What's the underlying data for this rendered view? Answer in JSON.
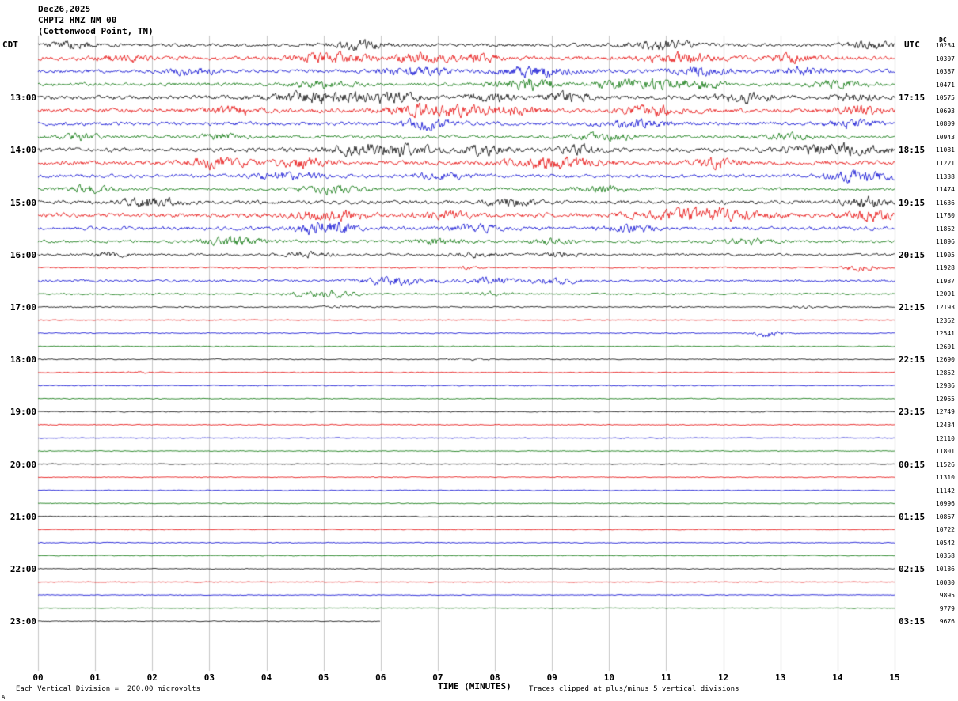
{
  "header": {
    "date": "Dec26,2025",
    "station": "CHPT2 HNZ NM 00",
    "location": "(Cottonwood Point, TN)",
    "left_tz": "CDT",
    "right_tz": "UTC",
    "right_col_label": "DC"
  },
  "footer": {
    "xlabel": "TIME (MINUTES)",
    "scale_note": "Each Vertical Division =  200.00 microvolts",
    "clip_note": "Traces clipped at plus/minus 5 vertical divisions",
    "corner_mark": "A"
  },
  "chart_data": {
    "type": "line",
    "title": "CHPT2 HNZ NM 00 (Cottonwood Point, TN) helicorder Dec26,2025",
    "xlabel": "TIME (MINUTES)",
    "x_range_minutes": [
      0,
      15
    ],
    "x_ticks": [
      "00",
      "01",
      "02",
      "03",
      "04",
      "05",
      "06",
      "07",
      "08",
      "09",
      "10",
      "11",
      "12",
      "13",
      "14",
      "15"
    ],
    "minutes_per_row": 15,
    "rows_per_hour": 4,
    "colors": {
      "black": "#000000",
      "red": "#e60000",
      "blue": "#0000d0",
      "green": "#007000",
      "grid": "#c6c6c6",
      "text": "#000000"
    },
    "rows": [
      {
        "color": "black",
        "dc": "10234",
        "amp": 1.6,
        "bursts": [
          [
            0.04,
            0.02,
            3
          ],
          [
            0.38,
            0.025,
            3.5
          ],
          [
            0.73,
            0.03,
            4
          ],
          [
            0.97,
            0.02,
            3
          ]
        ]
      },
      {
        "color": "red",
        "dc": "10307",
        "amp": 1.8,
        "bursts": [
          [
            0.1,
            0.02,
            3
          ],
          [
            0.34,
            0.03,
            4.5
          ],
          [
            0.44,
            0.02,
            4
          ],
          [
            0.51,
            0.02,
            3.5
          ],
          [
            0.75,
            0.03,
            4
          ],
          [
            0.88,
            0.02,
            3
          ]
        ]
      },
      {
        "color": "blue",
        "dc": "10387",
        "amp": 1.7,
        "bursts": [
          [
            0.18,
            0.02,
            3
          ],
          [
            0.44,
            0.025,
            4
          ],
          [
            0.58,
            0.03,
            4.5
          ],
          [
            0.77,
            0.025,
            4
          ],
          [
            0.89,
            0.02,
            3.5
          ]
        ]
      },
      {
        "color": "green",
        "dc": "10471",
        "amp": 1.7,
        "bursts": [
          [
            0.33,
            0.02,
            3
          ],
          [
            0.575,
            0.025,
            5
          ],
          [
            0.7,
            0.03,
            5
          ],
          [
            0.77,
            0.02,
            4
          ],
          [
            0.935,
            0.02,
            4
          ]
        ]
      },
      {
        "color": "black",
        "dc": "10575",
        "left": "13:00",
        "utc": "17:15",
        "amp": 2.0,
        "bursts": [
          [
            0.33,
            0.04,
            5
          ],
          [
            0.42,
            0.025,
            4
          ],
          [
            0.53,
            0.02,
            3.5
          ],
          [
            0.62,
            0.02,
            3.5
          ],
          [
            0.82,
            0.025,
            3.5
          ],
          [
            0.95,
            0.02,
            3
          ]
        ]
      },
      {
        "color": "red",
        "dc": "10693",
        "amp": 2.0,
        "bursts": [
          [
            0.23,
            0.02,
            3.5
          ],
          [
            0.47,
            0.04,
            5.5
          ],
          [
            0.56,
            0.02,
            4
          ],
          [
            0.72,
            0.025,
            4
          ],
          [
            0.96,
            0.02,
            3.5
          ]
        ]
      },
      {
        "color": "blue",
        "dc": "10809",
        "amp": 1.8,
        "bursts": [
          [
            0.455,
            0.02,
            4.5
          ],
          [
            0.7,
            0.025,
            3.5
          ],
          [
            0.95,
            0.02,
            3.5
          ]
        ]
      },
      {
        "color": "green",
        "dc": "10943",
        "amp": 1.5,
        "bursts": [
          [
            0.05,
            0.015,
            2.5
          ],
          [
            0.21,
            0.02,
            2.5
          ],
          [
            0.66,
            0.025,
            3
          ],
          [
            0.87,
            0.02,
            2.5
          ]
        ]
      },
      {
        "color": "black",
        "dc": "11081",
        "left": "14:00",
        "utc": "18:15",
        "amp": 1.9,
        "bursts": [
          [
            0.4,
            0.04,
            5.5
          ],
          [
            0.52,
            0.02,
            4
          ],
          [
            0.63,
            0.02,
            3.5
          ],
          [
            0.93,
            0.04,
            5
          ]
        ]
      },
      {
        "color": "red",
        "dc": "11221",
        "amp": 2.0,
        "bursts": [
          [
            0.205,
            0.025,
            4.5
          ],
          [
            0.31,
            0.02,
            4
          ],
          [
            0.6,
            0.035,
            5
          ],
          [
            0.79,
            0.02,
            3.5
          ]
        ]
      },
      {
        "color": "blue",
        "dc": "11338",
        "amp": 1.7,
        "bursts": [
          [
            0.29,
            0.025,
            3.5
          ],
          [
            0.47,
            0.02,
            3
          ],
          [
            0.96,
            0.025,
            5.5
          ]
        ]
      },
      {
        "color": "green",
        "dc": "11474",
        "amp": 1.5,
        "bursts": [
          [
            0.06,
            0.015,
            3.5
          ],
          [
            0.345,
            0.025,
            3.5
          ],
          [
            0.66,
            0.02,
            3
          ]
        ]
      },
      {
        "color": "black",
        "dc": "11636",
        "left": "15:00",
        "utc": "19:15",
        "amp": 1.7,
        "bursts": [
          [
            0.13,
            0.025,
            4.5
          ],
          [
            0.55,
            0.02,
            3
          ],
          [
            0.97,
            0.02,
            4
          ]
        ]
      },
      {
        "color": "red",
        "dc": "11780",
        "amp": 2.0,
        "bursts": [
          [
            0.34,
            0.03,
            5
          ],
          [
            0.47,
            0.02,
            3.5
          ],
          [
            0.78,
            0.05,
            5.5
          ],
          [
            0.97,
            0.02,
            4.5
          ]
        ]
      },
      {
        "color": "blue",
        "dc": "11862",
        "amp": 1.7,
        "bursts": [
          [
            0.335,
            0.025,
            5.5
          ],
          [
            0.51,
            0.02,
            3
          ],
          [
            0.69,
            0.02,
            3
          ]
        ]
      },
      {
        "color": "green",
        "dc": "11896",
        "amp": 1.4,
        "bursts": [
          [
            0.23,
            0.025,
            3.5
          ],
          [
            0.47,
            0.02,
            2.5
          ],
          [
            0.6,
            0.02,
            2.5
          ],
          [
            0.83,
            0.02,
            2.5
          ]
        ]
      },
      {
        "color": "black",
        "dc": "11905",
        "left": "16:00",
        "utc": "20:15",
        "amp": 1.1,
        "bursts": [
          [
            0.085,
            0.015,
            2.5
          ],
          [
            0.31,
            0.02,
            2
          ],
          [
            0.51,
            0.02,
            2
          ],
          [
            0.61,
            0.015,
            2
          ]
        ]
      },
      {
        "color": "red",
        "dc": "11928",
        "amp": 0.7,
        "bursts": [
          [
            0.5,
            0.01,
            1.2
          ],
          [
            0.96,
            0.015,
            2.5
          ]
        ]
      },
      {
        "color": "blue",
        "dc": "11987",
        "amp": 1.2,
        "bursts": [
          [
            0.42,
            0.03,
            3.5
          ],
          [
            0.53,
            0.02,
            3
          ],
          [
            0.6,
            0.02,
            2.5
          ]
        ]
      },
      {
        "color": "green",
        "dc": "12091",
        "amp": 0.9,
        "bursts": [
          [
            0.316,
            0.02,
            2.5
          ],
          [
            0.354,
            0.015,
            2
          ],
          [
            0.53,
            0.015,
            1.5
          ]
        ]
      },
      {
        "color": "black",
        "dc": "12193",
        "left": "17:00",
        "utc": "21:15",
        "amp": 0.6,
        "bursts": [
          [
            0.35,
            0.015,
            0.8
          ],
          [
            0.9,
            0.015,
            0.8
          ]
        ]
      },
      {
        "color": "red",
        "dc": "12362",
        "amp": 0.45,
        "bursts": []
      },
      {
        "color": "blue",
        "dc": "12541",
        "amp": 0.5,
        "bursts": [
          [
            0.852,
            0.012,
            3.5
          ]
        ]
      },
      {
        "color": "green",
        "dc": "12601",
        "amp": 0.45,
        "bursts": []
      },
      {
        "color": "black",
        "dc": "12690",
        "left": "18:00",
        "utc": "22:15",
        "amp": 0.5,
        "bursts": [
          [
            0.5,
            0.02,
            0.6
          ]
        ]
      },
      {
        "color": "red",
        "dc": "12852",
        "amp": 0.45,
        "bursts": [
          [
            0.12,
            0.01,
            0.8
          ]
        ]
      },
      {
        "color": "blue",
        "dc": "12986",
        "amp": 0.45,
        "bursts": []
      },
      {
        "color": "green",
        "dc": "12965",
        "amp": 0.42,
        "bursts": []
      },
      {
        "color": "black",
        "dc": "12749",
        "left": "19:00",
        "utc": "23:15",
        "amp": 0.45,
        "bursts": []
      },
      {
        "color": "red",
        "dc": "12434",
        "amp": 0.45,
        "bursts": []
      },
      {
        "color": "blue",
        "dc": "12110",
        "amp": 0.42,
        "bursts": []
      },
      {
        "color": "green",
        "dc": "11801",
        "amp": 0.4,
        "bursts": []
      },
      {
        "color": "black",
        "dc": "11526",
        "left": "20:00",
        "utc": "00:15",
        "amp": 0.45,
        "bursts": []
      },
      {
        "color": "red",
        "dc": "11310",
        "amp": 0.42,
        "bursts": []
      },
      {
        "color": "blue",
        "dc": "11142",
        "amp": 0.4,
        "bursts": []
      },
      {
        "color": "green",
        "dc": "10996",
        "amp": 0.4,
        "bursts": []
      },
      {
        "color": "black",
        "dc": "10867",
        "left": "21:00",
        "utc": "01:15",
        "amp": 0.42,
        "bursts": []
      },
      {
        "color": "red",
        "dc": "10722",
        "amp": 0.4,
        "bursts": []
      },
      {
        "color": "blue",
        "dc": "10542",
        "amp": 0.4,
        "bursts": []
      },
      {
        "color": "green",
        "dc": "10358",
        "amp": 0.38,
        "bursts": []
      },
      {
        "color": "black",
        "dc": "10186",
        "left": "22:00",
        "utc": "02:15",
        "amp": 0.4,
        "bursts": []
      },
      {
        "color": "red",
        "dc": "10030",
        "amp": 0.38,
        "bursts": []
      },
      {
        "color": "blue",
        "dc": "9895",
        "amp": 0.38,
        "bursts": []
      },
      {
        "color": "green",
        "dc": "9779",
        "amp": 0.38,
        "bursts": []
      },
      {
        "color": "black",
        "dc": "9676",
        "left": "23:00",
        "utc": "03:15",
        "amp": 0.38,
        "end": 0.4,
        "bursts": []
      }
    ]
  }
}
